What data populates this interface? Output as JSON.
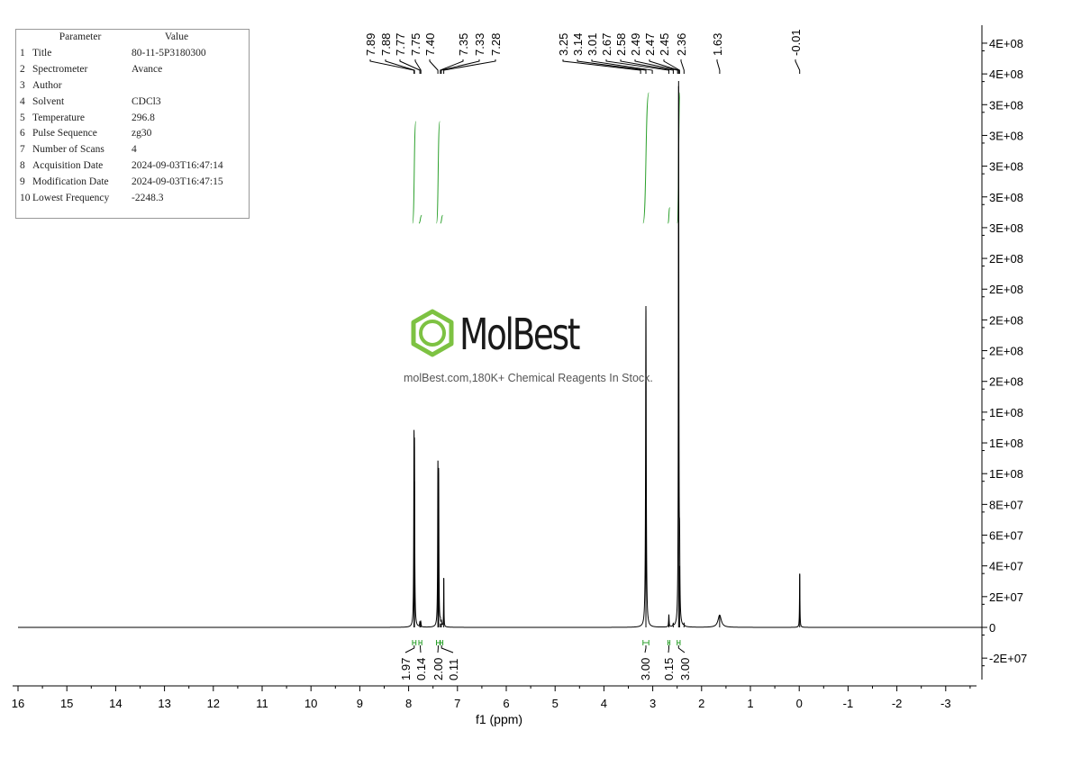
{
  "parameter_table": {
    "headers": [
      "Parameter",
      "Value"
    ],
    "rows": [
      {
        "index": "1",
        "name": "Title",
        "value": "80-11-5P3180300"
      },
      {
        "index": "2",
        "name": "Spectrometer",
        "value": "Avance"
      },
      {
        "index": "3",
        "name": "Author",
        "value": ""
      },
      {
        "index": "4",
        "name": "Solvent",
        "value": "CDCl3"
      },
      {
        "index": "5",
        "name": "Temperature",
        "value": "296.8"
      },
      {
        "index": "6",
        "name": "Pulse Sequence",
        "value": "zg30"
      },
      {
        "index": "7",
        "name": "Number of Scans",
        "value": "4"
      },
      {
        "index": "8",
        "name": "Acquisition Date",
        "value": "2024-09-03T16:47:14"
      },
      {
        "index": "9",
        "name": "Modification Date",
        "value": "2024-09-03T16:47:15"
      },
      {
        "index": "10",
        "name": "Lowest Frequency",
        "value": "-2248.3"
      }
    ]
  },
  "watermark": {
    "brand": "MolBest",
    "tagline": "molBest.com,180K+ Chemical Reagents In Stock."
  },
  "colors": {
    "spectrum": "#000000",
    "integral": "#2ca02c",
    "axis": "#000000",
    "logo_green": "#7dc242"
  },
  "chart_data": {
    "type": "line",
    "xlabel": "f1 (ppm)",
    "x_ticks": [
      "16",
      "15",
      "14",
      "13",
      "12",
      "11",
      "10",
      "9",
      "8",
      "7",
      "6",
      "5",
      "4",
      "3",
      "2",
      "1",
      "0",
      "-1",
      "-2",
      "-3"
    ],
    "x_tick_values": [
      16,
      15,
      14,
      13,
      12,
      11,
      10,
      9,
      8,
      7,
      6,
      5,
      4,
      3,
      2,
      1,
      0,
      -1,
      -2,
      -3
    ],
    "xlim": [
      16.0,
      -3.75
    ],
    "x_reversed": true,
    "y_ticks": [
      "4E+08",
      "4E+08",
      "3E+08",
      "3E+08",
      "3E+08",
      "3E+08",
      "3E+08",
      "2E+08",
      "2E+08",
      "2E+08",
      "2E+08",
      "2E+08",
      "1E+08",
      "1E+08",
      "1E+08",
      "8E+07",
      "6E+07",
      "4E+07",
      "2E+07",
      "0",
      "-2E+07"
    ],
    "y_tick_values": [
      380000000,
      360000000,
      340000000,
      320000000,
      300000000,
      280000000,
      260000000,
      240000000,
      220000000,
      200000000,
      180000000,
      160000000,
      140000000,
      120000000,
      100000000,
      80000000,
      60000000,
      40000000,
      20000000,
      0,
      -20000000
    ],
    "ylim": [
      -37000000,
      390000000
    ],
    "y_axis_side": "right",
    "peaks": [
      {
        "ppm": 7.89,
        "height": 102000000,
        "width": 0.006
      },
      {
        "ppm": 7.88,
        "height": 95000000,
        "width": 0.006
      },
      {
        "ppm": 7.77,
        "height": 3000000,
        "width": 0.006
      },
      {
        "ppm": 7.75,
        "height": 3000000,
        "width": 0.006
      },
      {
        "ppm": 7.4,
        "height": 97000000,
        "width": 0.006
      },
      {
        "ppm": 7.385,
        "height": 90000000,
        "width": 0.006
      },
      {
        "ppm": 7.35,
        "height": 2500000,
        "width": 0.006
      },
      {
        "ppm": 7.33,
        "height": 2500000,
        "width": 0.006
      },
      {
        "ppm": 7.28,
        "height": 32000000,
        "width": 0.004
      },
      {
        "ppm": 3.14,
        "height": 209000000,
        "width": 0.008
      },
      {
        "ppm": 2.67,
        "height": 8000000,
        "width": 0.006
      },
      {
        "ppm": 2.58,
        "height": 1500000,
        "width": 0.006
      },
      {
        "ppm": 2.47,
        "height": 352000000,
        "width": 0.006
      },
      {
        "ppm": 2.45,
        "height": 40000000,
        "width": 0.006
      },
      {
        "ppm": 2.36,
        "height": 1500000,
        "width": 0.006
      },
      {
        "ppm": 1.63,
        "height": 8000000,
        "width": 0.04
      },
      {
        "ppm": -0.01,
        "height": 35000000,
        "width": 0.005
      }
    ],
    "peak_labels": [
      {
        "text": "7.89",
        "ppm": 7.89
      },
      {
        "text": "7.88",
        "ppm": 7.88
      },
      {
        "text": "7.77",
        "ppm": 7.77
      },
      {
        "text": "7.75",
        "ppm": 7.75
      },
      {
        "text": "7.40",
        "ppm": 7.4
      },
      {
        "text": "7.35",
        "ppm": 7.35
      },
      {
        "text": "7.33",
        "ppm": 7.33
      },
      {
        "text": "7.28",
        "ppm": 7.28
      },
      {
        "text": "3.25",
        "ppm": 3.25
      },
      {
        "text": "3.14",
        "ppm": 3.14
      },
      {
        "text": "3.01",
        "ppm": 3.01
      },
      {
        "text": "2.67",
        "ppm": 2.67
      },
      {
        "text": "2.58",
        "ppm": 2.58
      },
      {
        "text": "2.49",
        "ppm": 2.49
      },
      {
        "text": "2.47",
        "ppm": 2.47
      },
      {
        "text": "2.45",
        "ppm": 2.45
      },
      {
        "text": "2.36",
        "ppm": 2.36
      },
      {
        "text": "1.63",
        "ppm": 1.63
      },
      {
        "text": "-0.01",
        "ppm": -0.01
      }
    ],
    "peak_label_groups": [
      {
        "labels": [
          "7.89",
          "7.88",
          "7.77",
          "7.75",
          "7.40"
        ]
      },
      {
        "labels": [
          "7.35",
          "7.33",
          "7.28"
        ]
      },
      {
        "labels": [
          "3.25",
          "3.14",
          "3.01",
          "2.67",
          "2.58",
          "2.49"
        ]
      },
      {
        "labels": [
          "2.47",
          "2.45",
          "2.36"
        ]
      },
      {
        "labels": [
          "1.63"
        ]
      },
      {
        "labels": [
          "-0.01"
        ]
      }
    ],
    "integrals": [
      {
        "text": "1.97",
        "from": 7.92,
        "to": 7.85
      },
      {
        "text": "0.14",
        "from": 7.79,
        "to": 7.73
      },
      {
        "text": "2.00",
        "from": 7.43,
        "to": 7.36
      },
      {
        "text": "0.11",
        "from": 7.35,
        "to": 7.3
      },
      {
        "text": "3.00",
        "from": 3.2,
        "to": 3.08
      },
      {
        "text": "0.15",
        "from": 2.69,
        "to": 2.65
      },
      {
        "text": "3.00",
        "from": 2.5,
        "to": 2.44
      }
    ],
    "integral_curves": [
      {
        "from": 7.92,
        "to": 7.85,
        "rise": 0.78
      },
      {
        "from": 7.79,
        "to": 7.73,
        "rise": 0.06
      },
      {
        "from": 7.43,
        "to": 7.36,
        "rise": 0.78
      },
      {
        "from": 7.35,
        "to": 7.3,
        "rise": 0.06
      },
      {
        "from": 3.2,
        "to": 3.08,
        "rise": 1.0
      },
      {
        "from": 2.69,
        "to": 2.65,
        "rise": 0.12
      },
      {
        "from": 2.5,
        "to": 2.44,
        "rise": 1.0
      }
    ]
  }
}
